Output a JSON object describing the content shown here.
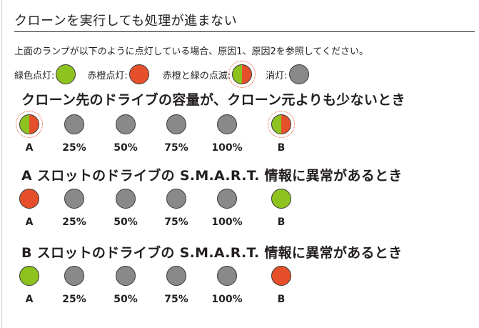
{
  "title": "クローンを実行しても処理が進まない",
  "intro": "上面のランプが以下のように点灯している場合、原因1、原因2を参照してください。",
  "legend": {
    "green_on": "緑色点灯:",
    "amber_on": "赤橙点灯:",
    "blinking": "赤橙と緑の点滅:",
    "off": "消灯:"
  },
  "colors": {
    "green": "#8dc21f",
    "red": "#e5502b",
    "gray": "#898989"
  },
  "sections": [
    {
      "heading": "クローン先のドライブの容量が、クローン元よりも少ないとき",
      "lamps": [
        {
          "label": "A",
          "state": "blinking"
        },
        {
          "label": "25%",
          "state": "off"
        },
        {
          "label": "50%",
          "state": "off"
        },
        {
          "label": "75%",
          "state": "off"
        },
        {
          "label": "100%",
          "state": "off"
        },
        {
          "label": "B",
          "state": "blinking"
        }
      ]
    },
    {
      "heading": "A スロットのドライブの S.M.A.R.T. 情報に異常があるとき",
      "lamps": [
        {
          "label": "A",
          "state": "amber"
        },
        {
          "label": "25%",
          "state": "off"
        },
        {
          "label": "50%",
          "state": "off"
        },
        {
          "label": "75%",
          "state": "off"
        },
        {
          "label": "100%",
          "state": "off"
        },
        {
          "label": "B",
          "state": "green"
        }
      ]
    },
    {
      "heading": "B スロットのドライブの S.M.A.R.T. 情報に異常があるとき",
      "lamps": [
        {
          "label": "A",
          "state": "green"
        },
        {
          "label": "25%",
          "state": "off"
        },
        {
          "label": "50%",
          "state": "off"
        },
        {
          "label": "75%",
          "state": "off"
        },
        {
          "label": "100%",
          "state": "off"
        },
        {
          "label": "B",
          "state": "amber"
        }
      ]
    }
  ]
}
